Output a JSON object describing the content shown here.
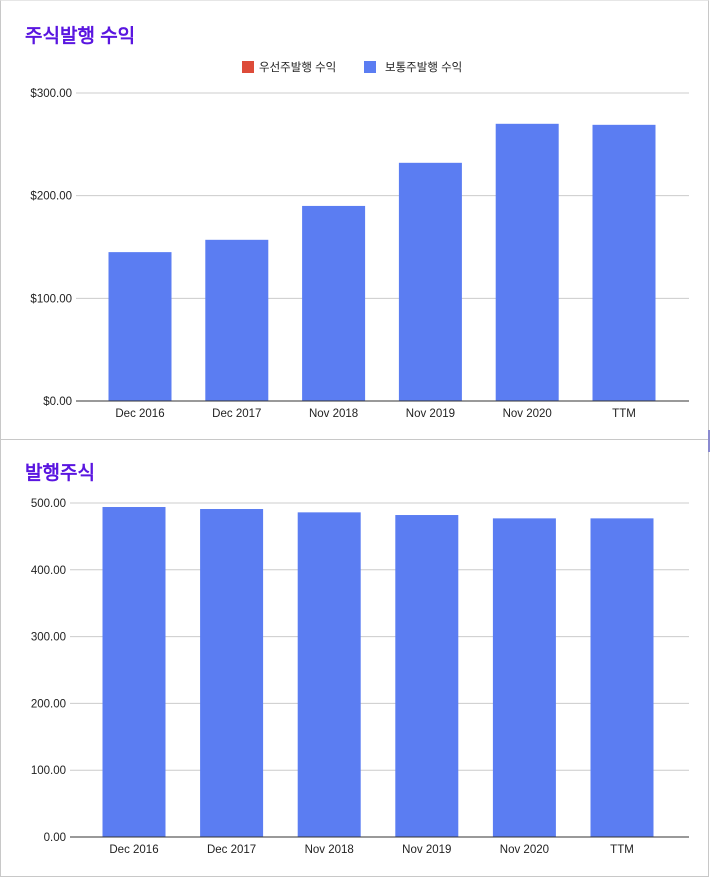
{
  "chart_data": [
    {
      "type": "bar",
      "title": "주식발행 수익",
      "categories": [
        "Dec 2016",
        "Dec 2017",
        "Nov 2018",
        "Nov 2019",
        "Nov 2020",
        "TTM"
      ],
      "series": [
        {
          "name": "우선주발행 수익",
          "color": "#dd4b39",
          "values": [
            0,
            0,
            0,
            0,
            0,
            0
          ]
        },
        {
          "name": "보통주발행 수익",
          "color": "#5b7df2",
          "values": [
            145,
            157,
            190,
            232,
            270,
            269
          ]
        }
      ],
      "ylim": [
        0,
        300
      ],
      "yticks": [
        "$0.00",
        "$100.00",
        "$200.00",
        "$300.00"
      ],
      "ytick_values": [
        0,
        100,
        200,
        300
      ],
      "legend_position": "top",
      "grid": true
    },
    {
      "type": "bar",
      "title": "발행주식",
      "categories": [
        "Dec 2016",
        "Dec 2017",
        "Nov 2018",
        "Nov 2019",
        "Nov 2020",
        "TTM"
      ],
      "series": [
        {
          "color": "#5b7df2",
          "values": [
            494,
            491,
            486,
            482,
            477,
            477
          ]
        }
      ],
      "ylim": [
        0,
        500
      ],
      "yticks": [
        "0.00",
        "100.00",
        "200.00",
        "300.00",
        "400.00",
        "500.00"
      ],
      "ytick_values": [
        0,
        100,
        200,
        300,
        400,
        500
      ],
      "legend_position": "none",
      "grid": true
    }
  ]
}
